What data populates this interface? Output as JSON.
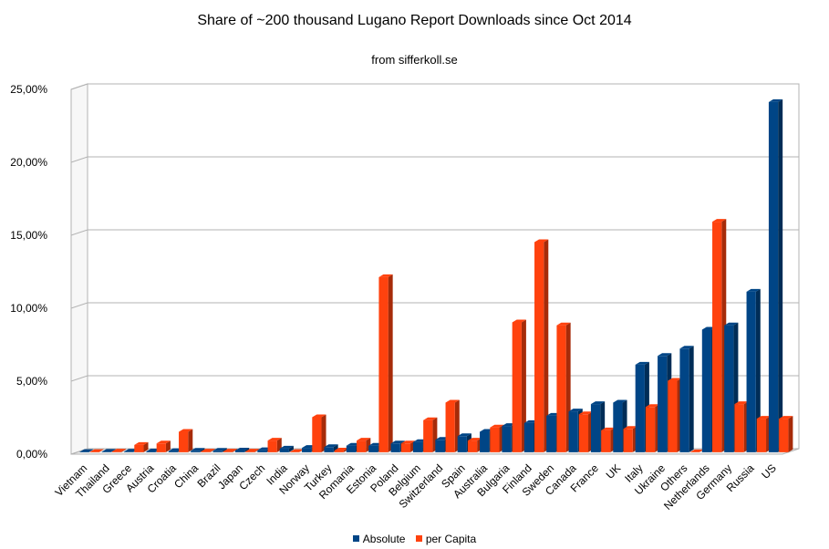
{
  "chart_data": {
    "type": "bar",
    "title": "Share of ~200 thousand Lugano Report Downloads since Oct 2014",
    "subtitle": "from sifferkoll.se",
    "xlabel": "",
    "ylabel": "",
    "ylim": [
      0,
      25
    ],
    "y_ticks": [
      "0,00%",
      "5,00%",
      "10,00%",
      "15,00%",
      "20,00%",
      "25,00%"
    ],
    "grid": "horizontal",
    "legend_position": "bottom",
    "categories": [
      "Vietnam",
      "Thailand",
      "Greece",
      "Austria",
      "Croatia",
      "China",
      "Brazil",
      "Japan",
      "Czech",
      "India",
      "Norway",
      "Turkey",
      "Romania",
      "Estonia",
      "Poland",
      "Belgium",
      "Switzerland",
      "Spain",
      "Australia",
      "Bulgaria",
      "Finland",
      "Sweden",
      "Canada",
      "France",
      "UK",
      "Italy",
      "Ukraine",
      "Others",
      "Netherlands",
      "Germany",
      "Russia",
      "US"
    ],
    "series": [
      {
        "name": "Absolute",
        "color": "#004586",
        "values": [
          0.02,
          0.03,
          0.04,
          0.06,
          0.08,
          0.1,
          0.1,
          0.12,
          0.14,
          0.25,
          0.3,
          0.35,
          0.45,
          0.45,
          0.6,
          0.7,
          0.85,
          1.1,
          1.4,
          1.8,
          2.0,
          2.5,
          2.8,
          3.3,
          3.4,
          6.0,
          6.6,
          7.1,
          8.4,
          8.7,
          11.0,
          24.0
        ]
      },
      {
        "name": "per Capita",
        "color": "#ff420e",
        "values": [
          0.02,
          0.05,
          0.5,
          0.6,
          1.4,
          0.05,
          0.05,
          0.05,
          0.8,
          0.02,
          2.4,
          0.12,
          0.8,
          12.0,
          0.6,
          2.2,
          3.4,
          0.8,
          1.7,
          8.9,
          14.4,
          8.7,
          2.6,
          1.5,
          1.6,
          3.1,
          4.9,
          0.0,
          15.8,
          3.3,
          2.3,
          2.3
        ]
      }
    ]
  }
}
